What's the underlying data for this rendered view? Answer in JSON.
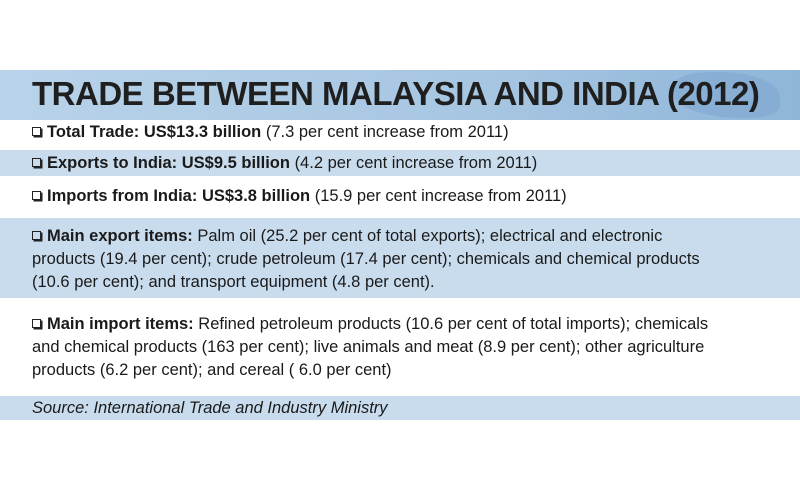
{
  "title": "TRADE BETWEEN MALAYSIA AND INDIA (2012)",
  "rows": [
    {
      "label": "Total Trade:",
      "value": "US$13.3 billion",
      "note": "(7.3 per cent increase from 2011)"
    },
    {
      "label": "Exports to India:",
      "value": "US$9.5 billion",
      "note": "(4.2 per cent increase from 2011)"
    },
    {
      "label": "Imports from India:",
      "value": "US$3.8 billion",
      "note": "(15.9 per cent increase from 2011)"
    }
  ],
  "export_items": {
    "label": "Main export items:",
    "lines": [
      "Palm oil (25.2 per cent of total exports); electrical and electronic",
      "products (19.4 per cent); crude petroleum (17.4 per cent); chemicals and chemical products",
      "(10.6 per cent); and transport equipment (4.8 per cent)."
    ]
  },
  "import_items": {
    "label": "Main import items:",
    "lines": [
      "Refined petroleum products (10.6 per cent of total imports); chemicals",
      "and chemical products (163 per cent); live animals and meat (8.9 per cent); other agriculture",
      "products (6.2 per cent); and cereal ( 6.0 per cent)"
    ]
  },
  "source": "Source: International Trade and Industry Ministry",
  "colors": {
    "title_bar": "#a7c6e2",
    "row_blue": "#c9dcee",
    "text": "#1a1a1a"
  }
}
